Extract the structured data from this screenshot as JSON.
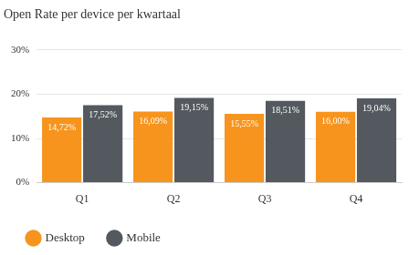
{
  "chart_data": {
    "type": "bar",
    "title": "Open Rate per device per kwartaal",
    "categories": [
      "Q1",
      "Q2",
      "Q3",
      "Q4"
    ],
    "series": [
      {
        "name": "Desktop",
        "color": "#f7941d",
        "values": [
          14.72,
          16.09,
          15.55,
          16.0
        ],
        "value_labels": [
          "14,72%",
          "16,09%",
          "15,55%",
          "16,00%"
        ]
      },
      {
        "name": "Mobile",
        "color": "#53595f",
        "values": [
          17.52,
          19.15,
          18.51,
          19.04
        ],
        "value_labels": [
          "17,52%",
          "19,15%",
          "18,51%",
          "19,04%"
        ]
      }
    ],
    "ylim": [
      0,
      30
    ],
    "yticks": [
      {
        "value": 0,
        "label": "0%"
      },
      {
        "value": 10,
        "label": "10%"
      },
      {
        "value": 20,
        "label": "20%"
      },
      {
        "value": 30,
        "label": "30%"
      }
    ],
    "grid": true,
    "legend": "bottom",
    "data_labels": true
  }
}
